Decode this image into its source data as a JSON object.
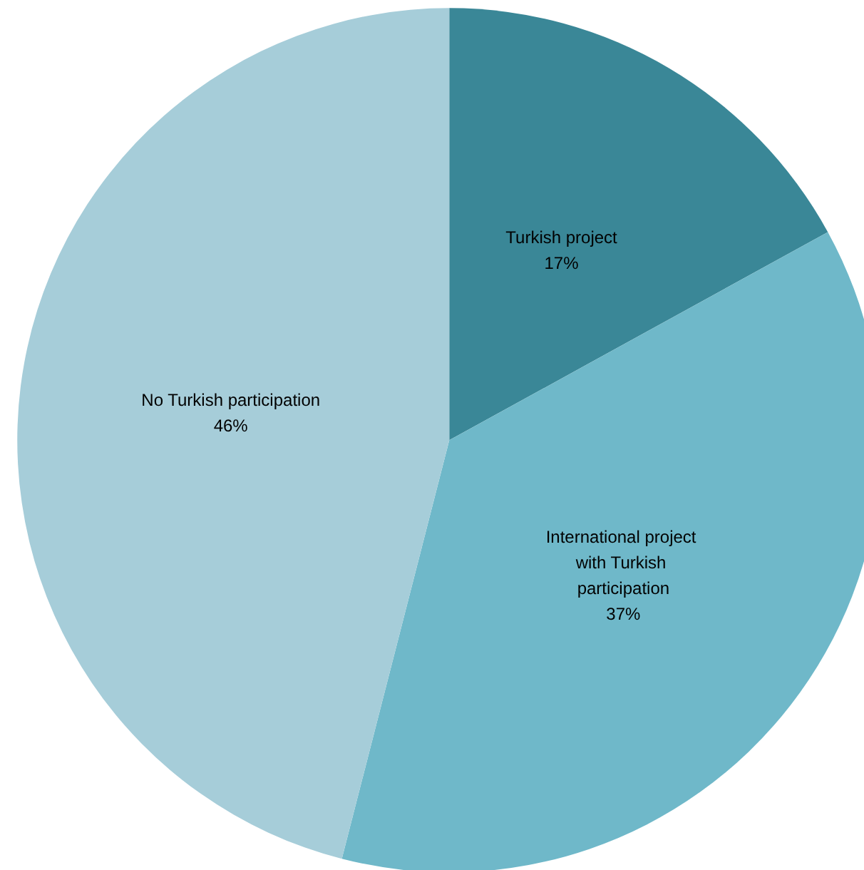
{
  "chart_data": {
    "type": "pie",
    "categories": [
      "Turkish project",
      "International project with Turkish participation",
      "No Turkish participation"
    ],
    "values": [
      17,
      37,
      46
    ],
    "value_labels": [
      "17%",
      "37%",
      "46%"
    ],
    "colors": [
      "#3a8797",
      "#6fb8c9",
      "#a6cdd9"
    ],
    "legend": false
  }
}
